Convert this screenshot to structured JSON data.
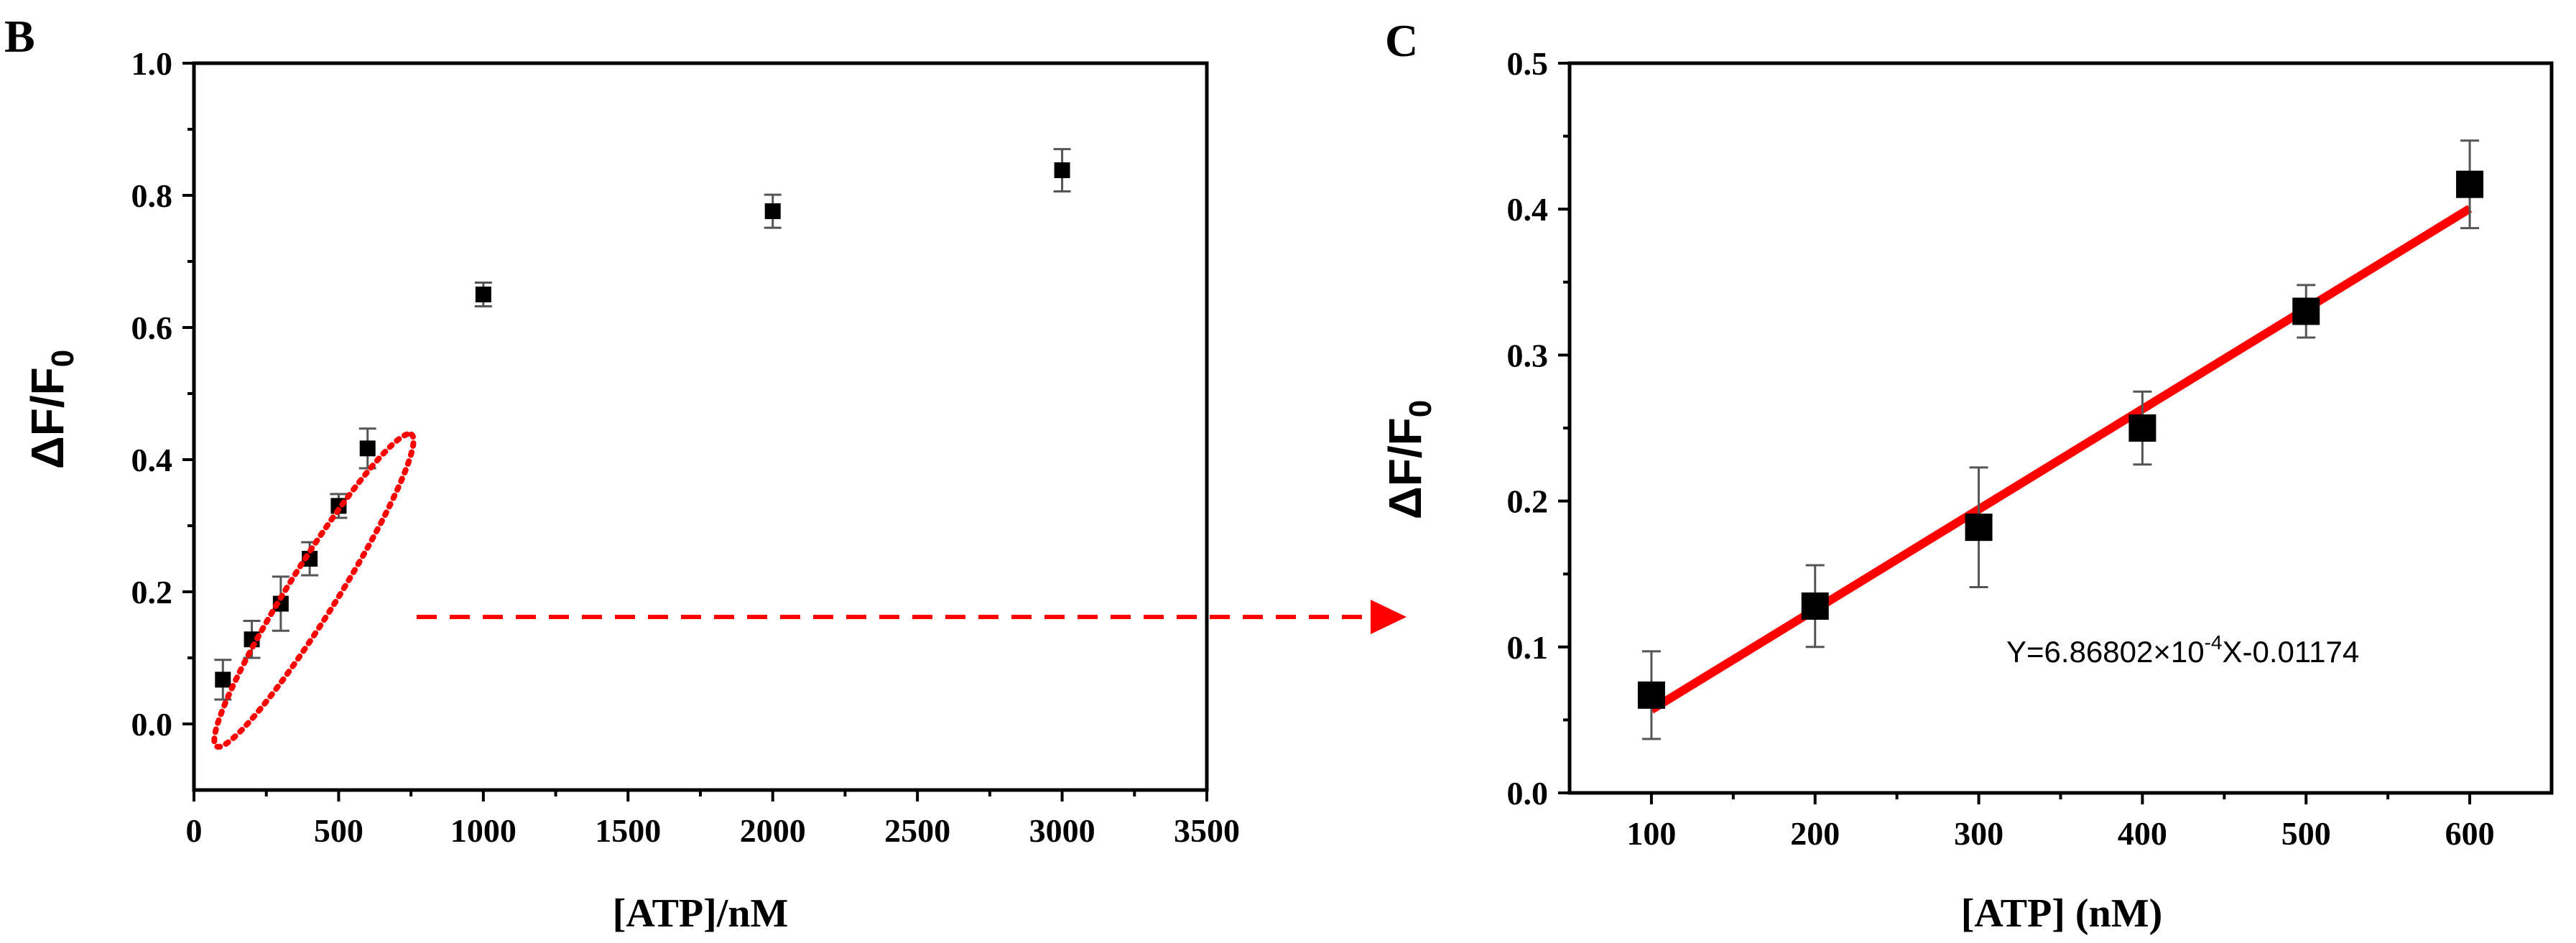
{
  "panels": {
    "b": {
      "letter": "B"
    },
    "c": {
      "letter": "C"
    }
  },
  "colors": {
    "marker": "#000000",
    "error_bar": "#555555",
    "fit_line": "#ff0000",
    "highlight": "#ff0000",
    "axis": "#000000"
  },
  "chart_data": [
    {
      "panel": "B",
      "type": "scatter",
      "xlabel": "[ATP]/nM",
      "ylabel_main": "ΔF/F",
      "ylabel_sub": "0",
      "xlim": [
        0,
        3500
      ],
      "ylim": [
        -0.1,
        1.0
      ],
      "xticks": [
        0,
        500,
        1000,
        1500,
        2000,
        2500,
        3000,
        3500
      ],
      "xtick_labels": [
        "0",
        "500",
        "1000",
        "1500",
        "2000",
        "2500",
        "3000",
        "3500"
      ],
      "yticks": [
        0.0,
        0.2,
        0.4,
        0.6,
        0.8,
        1.0
      ],
      "ytick_labels": [
        "0.0",
        "0.2",
        "0.4",
        "0.6",
        "0.8",
        "1.0"
      ],
      "grid": false,
      "series": [
        {
          "points": [
            {
              "x": 100,
              "y": 0.067,
              "err": 0.03
            },
            {
              "x": 200,
              "y": 0.128,
              "err": 0.028
            },
            {
              "x": 300,
              "y": 0.182,
              "err": 0.041
            },
            {
              "x": 400,
              "y": 0.25,
              "err": 0.025
            },
            {
              "x": 500,
              "y": 0.33,
              "err": 0.018
            },
            {
              "x": 600,
              "y": 0.417,
              "err": 0.03
            },
            {
              "x": 1000,
              "y": 0.65,
              "err": 0.018
            },
            {
              "x": 2000,
              "y": 0.776,
              "err": 0.025
            },
            {
              "x": 3000,
              "y": 0.838,
              "err": 0.032
            }
          ]
        }
      ],
      "annotation": "dashed red ellipse around the 100–600 nM points with a dashed red arrow pointing to panel C"
    },
    {
      "panel": "C",
      "type": "scatter",
      "xlabel": "[ATP] (nM)",
      "ylabel_main": "ΔF/F",
      "ylabel_sub": "0",
      "xlim": [
        50,
        650
      ],
      "ylim": [
        0.0,
        0.5
      ],
      "xticks": [
        100,
        200,
        300,
        400,
        500,
        600
      ],
      "xtick_labels": [
        "100",
        "200",
        "300",
        "400",
        "500",
        "600"
      ],
      "yticks": [
        0.0,
        0.1,
        0.2,
        0.3,
        0.4,
        0.5
      ],
      "ytick_labels": [
        "0.0",
        "0.1",
        "0.2",
        "0.3",
        "0.4",
        "0.5"
      ],
      "grid": false,
      "series": [
        {
          "points": [
            {
              "x": 100,
              "y": 0.067,
              "err": 0.03
            },
            {
              "x": 200,
              "y": 0.128,
              "err": 0.028
            },
            {
              "x": 300,
              "y": 0.182,
              "err": 0.041
            },
            {
              "x": 400,
              "y": 0.25,
              "err": 0.025
            },
            {
              "x": 500,
              "y": 0.33,
              "err": 0.018
            },
            {
              "x": 600,
              "y": 0.417,
              "err": 0.03
            }
          ]
        }
      ],
      "fit": {
        "slope": 0.000686802,
        "intercept": -0.01174,
        "x_range": [
          100,
          600
        ],
        "equation_prefix": "Y=6.86802×10",
        "equation_exponent": "-4",
        "equation_suffix": "X-0.01174"
      }
    }
  ]
}
